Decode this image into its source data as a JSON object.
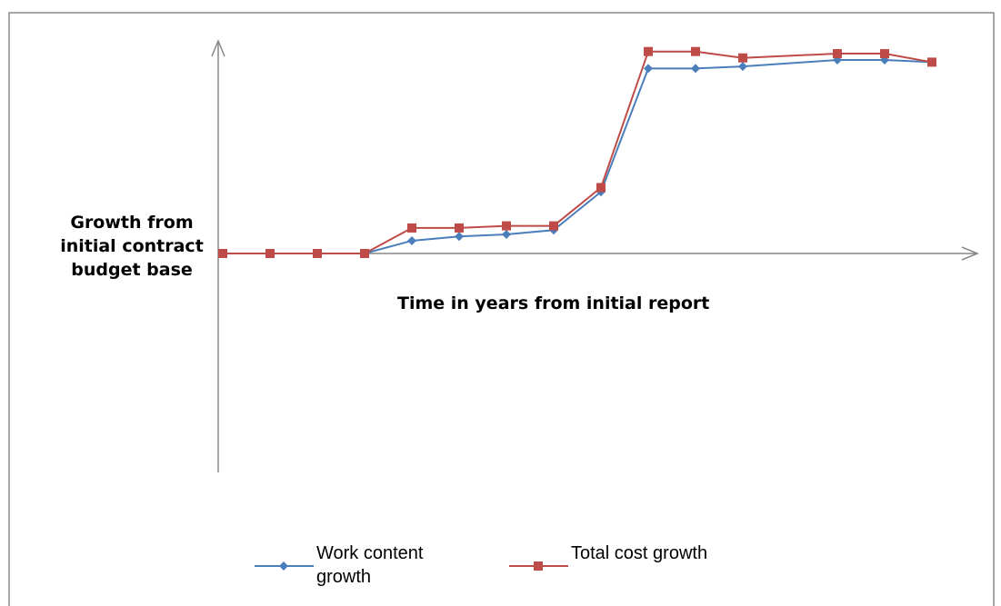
{
  "chart_data": {
    "type": "line",
    "y_label": "Growth from initial contract budget base",
    "x_label": "Time in years from initial report",
    "x": [
      0,
      1,
      2,
      3,
      4,
      5,
      6,
      7,
      8,
      9,
      10,
      11,
      13,
      14,
      15
    ],
    "series": [
      {
        "name": "Work content growth",
        "color": "#4a7ebb",
        "marker": "diamond",
        "values": [
          0,
          0,
          0,
          0,
          6,
          8,
          9,
          11,
          29,
          87,
          87,
          88,
          91,
          91,
          90
        ]
      },
      {
        "name": "Total cost growth",
        "color": "#be4b48",
        "marker": "square",
        "values": [
          0,
          0,
          0,
          0,
          12,
          12,
          13,
          13,
          31,
          95,
          95,
          92,
          94,
          94,
          90
        ]
      }
    ],
    "xlim": [
      0,
      16
    ],
    "ylim": [
      -100,
      100
    ],
    "legend": "bottom"
  }
}
